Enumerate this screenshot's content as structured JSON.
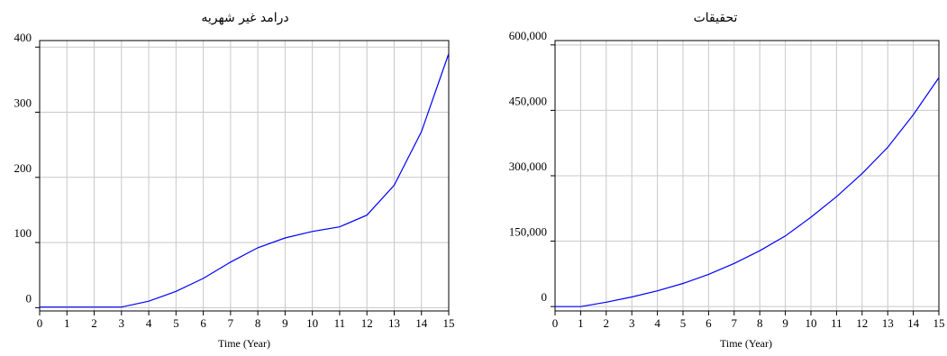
{
  "chart_data": [
    {
      "type": "line",
      "title": "درامد غیر شهریه",
      "xlabel": "Time (Year)",
      "ylabel": "",
      "x": [
        0,
        1,
        2,
        3,
        4,
        5,
        6,
        7,
        8,
        9,
        10,
        11,
        12,
        13,
        14,
        15
      ],
      "series": [
        {
          "values": [
            1,
            1,
            1,
            1,
            10,
            25,
            45,
            70,
            92,
            107,
            117,
            124,
            142,
            188,
            270,
            390
          ]
        }
      ],
      "xlim": [
        0,
        15
      ],
      "ylim": [
        -5,
        410
      ],
      "yticks": [
        0,
        100,
        200,
        300,
        400
      ],
      "ytick_labels": [
        "0",
        "100",
        "200",
        "300",
        "400"
      ],
      "grid": true,
      "line_color": "#0000ff"
    },
    {
      "type": "line",
      "title": "تحقیقات",
      "xlabel": "Time (Year)",
      "ylabel": "",
      "x": [
        0,
        1,
        2,
        3,
        4,
        5,
        6,
        7,
        8,
        9,
        10,
        11,
        12,
        13,
        14,
        15
      ],
      "series": [
        {
          "values": [
            0,
            0,
            10000,
            22000,
            36000,
            53000,
            74000,
            99000,
            128000,
            162000,
            205000,
            252000,
            305000,
            365000,
            440000,
            525000
          ]
        }
      ],
      "xlim": [
        0,
        15
      ],
      "ylim": [
        -10000,
        610000
      ],
      "yticks": [
        0,
        150000,
        300000,
        450000,
        600000
      ],
      "ytick_labels": [
        "0",
        "150,000",
        "300,000",
        "450,000",
        "600,000"
      ],
      "grid": true,
      "line_color": "#0000ff"
    }
  ]
}
